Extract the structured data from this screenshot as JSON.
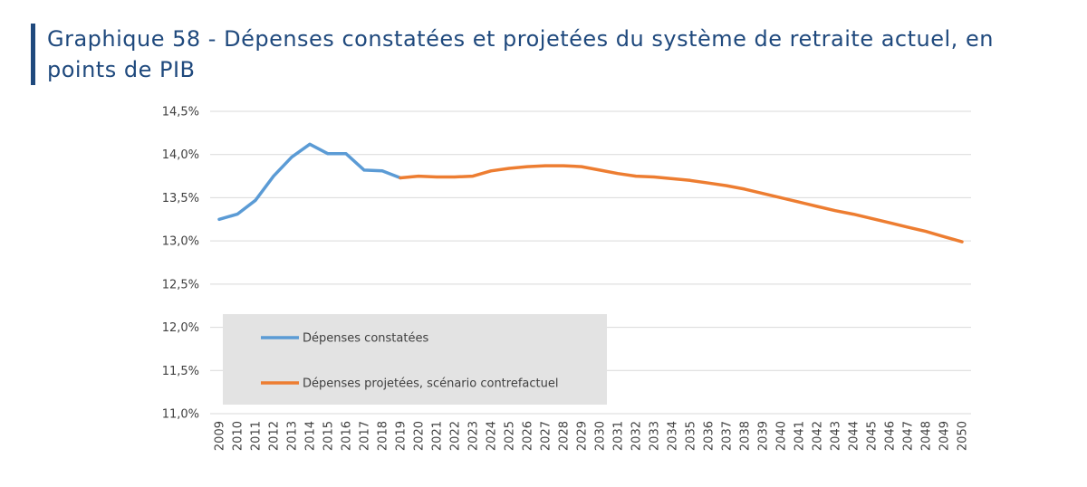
{
  "colors": {
    "title": "#1f497d",
    "title_bar": "#1f497d",
    "observed": "#5b9bd5",
    "projected": "#ed7d31",
    "grid": "#d9d9d9",
    "legend_bg": "#e3e3e3"
  },
  "chart_data": {
    "type": "line",
    "title": "Graphique 58 - Dépenses constatées et projetées du système de retraite actuel, en points de PIB",
    "xlabel": "",
    "ylabel": "",
    "ylim": [
      11.0,
      14.5
    ],
    "yticks": [
      11.0,
      11.5,
      12.0,
      12.5,
      13.0,
      13.5,
      14.0,
      14.5
    ],
    "ytick_labels": [
      "11,0%",
      "11,5%",
      "12,0%",
      "12,5%",
      "13,0%",
      "13,5%",
      "14,0%",
      "14,5%"
    ],
    "x": [
      "2009",
      "2010",
      "2011",
      "2012",
      "2013",
      "2014",
      "2015",
      "2016",
      "2017",
      "2018",
      "2019",
      "2020",
      "2021",
      "2022",
      "2023",
      "2024",
      "2025",
      "2026",
      "2027",
      "2028",
      "2029",
      "2030",
      "2031",
      "2032",
      "2033",
      "2034",
      "2035",
      "2036",
      "2037",
      "2038",
      "2039",
      "2040",
      "2041",
      "2042",
      "2043",
      "2044",
      "2045",
      "2046",
      "2047",
      "2048",
      "2049",
      "2050"
    ],
    "grid": true,
    "legend_position": "bottom-left",
    "series": [
      {
        "name": "Dépenses constatées",
        "x": [
          "2009",
          "2010",
          "2011",
          "2012",
          "2013",
          "2014",
          "2015",
          "2016",
          "2017",
          "2018",
          "2019"
        ],
        "values": [
          13.25,
          13.31,
          13.47,
          13.75,
          13.97,
          14.12,
          14.01,
          14.01,
          13.82,
          13.81,
          13.73
        ]
      },
      {
        "name": "Dépenses projetées, scénario contrefactuel",
        "x": [
          "2019",
          "2020",
          "2021",
          "2022",
          "2023",
          "2024",
          "2025",
          "2026",
          "2027",
          "2028",
          "2029",
          "2030",
          "2031",
          "2032",
          "2033",
          "2034",
          "2035",
          "2036",
          "2037",
          "2038",
          "2039",
          "2040",
          "2041",
          "2042",
          "2043",
          "2044",
          "2045",
          "2046",
          "2047",
          "2048",
          "2049",
          "2050"
        ],
        "values": [
          13.73,
          13.75,
          13.74,
          13.74,
          13.75,
          13.81,
          13.84,
          13.86,
          13.87,
          13.87,
          13.86,
          13.82,
          13.78,
          13.75,
          13.74,
          13.72,
          13.7,
          13.67,
          13.64,
          13.6,
          13.55,
          13.5,
          13.45,
          13.4,
          13.35,
          13.31,
          13.26,
          13.21,
          13.16,
          13.11,
          13.05,
          12.99
        ]
      }
    ]
  }
}
